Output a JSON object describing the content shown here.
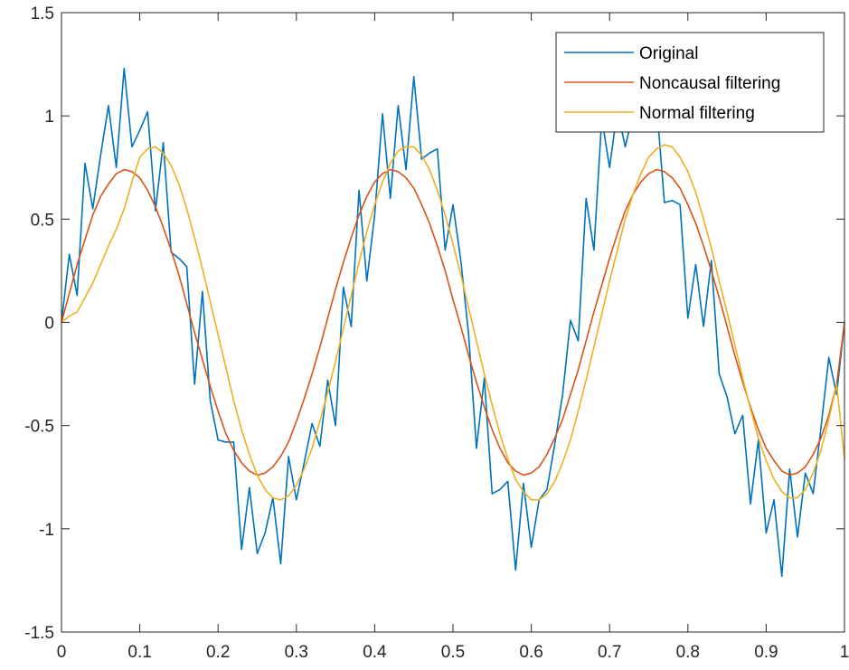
{
  "chart_data": {
    "type": "line",
    "x": [
      0.0,
      0.01,
      0.02,
      0.03,
      0.04,
      0.05,
      0.06,
      0.07,
      0.08,
      0.09,
      0.1,
      0.11,
      0.12,
      0.13,
      0.14,
      0.15,
      0.16,
      0.17,
      0.18,
      0.19,
      0.2,
      0.21,
      0.22,
      0.23,
      0.24,
      0.25,
      0.26,
      0.27,
      0.28,
      0.29,
      0.3,
      0.31,
      0.32,
      0.33,
      0.34,
      0.35,
      0.36,
      0.37,
      0.38,
      0.39,
      0.4,
      0.41,
      0.42,
      0.43,
      0.44,
      0.45,
      0.46,
      0.47,
      0.48,
      0.49,
      0.5,
      0.51,
      0.52,
      0.53,
      0.54,
      0.55,
      0.56,
      0.57,
      0.58,
      0.59,
      0.6,
      0.61,
      0.62,
      0.63,
      0.64,
      0.65,
      0.66,
      0.67,
      0.68,
      0.69,
      0.7,
      0.71,
      0.72,
      0.73,
      0.74,
      0.75,
      0.76,
      0.77,
      0.78,
      0.79,
      0.8,
      0.81,
      0.82,
      0.83,
      0.84,
      0.85,
      0.86,
      0.87,
      0.88,
      0.89,
      0.9,
      0.91,
      0.92,
      0.93,
      0.94,
      0.95,
      0.96,
      0.97,
      0.98,
      0.99,
      1.0
    ],
    "series": [
      {
        "name": "Original",
        "color": "#0072BD",
        "values": [
          0.0,
          0.33,
          0.13,
          0.77,
          0.55,
          0.81,
          1.05,
          0.75,
          1.23,
          0.85,
          0.93,
          1.02,
          0.54,
          0.87,
          0.34,
          0.31,
          0.27,
          -0.3,
          0.15,
          -0.38,
          -0.57,
          -0.58,
          -0.58,
          -1.1,
          -0.8,
          -1.12,
          -1.02,
          -0.85,
          -1.17,
          -0.65,
          -0.86,
          -0.68,
          -0.49,
          -0.6,
          -0.28,
          -0.5,
          0.17,
          -0.02,
          0.64,
          0.2,
          0.52,
          1.01,
          0.6,
          1.05,
          0.74,
          1.19,
          0.79,
          0.82,
          0.84,
          0.35,
          0.57,
          0.3,
          -0.06,
          -0.61,
          -0.27,
          -0.83,
          -0.81,
          -0.77,
          -1.2,
          -0.78,
          -1.09,
          -0.86,
          -0.81,
          -0.59,
          -0.35,
          0.01,
          -0.09,
          0.6,
          0.35,
          0.99,
          0.75,
          1.03,
          0.85,
          1.01,
          0.99,
          1.01,
          1.06,
          0.58,
          0.59,
          0.57,
          0.02,
          0.28,
          -0.02,
          0.3,
          -0.25,
          -0.36,
          -0.54,
          -0.45,
          -0.88,
          -0.57,
          -1.02,
          -0.86,
          -1.23,
          -0.71,
          -1.04,
          -0.73,
          -0.83,
          -0.51,
          -0.17,
          -0.35,
          0.0
        ]
      },
      {
        "name": "Noncausal filtering",
        "color": "#D95319",
        "values": [
          0.0,
          0.14,
          0.28,
          0.4,
          0.52,
          0.61,
          0.67,
          0.72,
          0.74,
          0.73,
          0.7,
          0.64,
          0.56,
          0.46,
          0.35,
          0.23,
          0.09,
          -0.05,
          -0.18,
          -0.31,
          -0.43,
          -0.54,
          -0.62,
          -0.68,
          -0.72,
          -0.74,
          -0.73,
          -0.7,
          -0.65,
          -0.58,
          -0.48,
          -0.37,
          -0.25,
          -0.12,
          0.02,
          0.16,
          0.29,
          0.41,
          0.52,
          0.61,
          0.68,
          0.72,
          0.74,
          0.73,
          0.7,
          0.65,
          0.57,
          0.48,
          0.37,
          0.25,
          0.11,
          -0.02,
          -0.16,
          -0.29,
          -0.41,
          -0.52,
          -0.61,
          -0.68,
          -0.72,
          -0.74,
          -0.73,
          -0.7,
          -0.64,
          -0.56,
          -0.47,
          -0.35,
          -0.23,
          -0.09,
          0.05,
          0.18,
          0.31,
          0.43,
          0.54,
          0.62,
          0.68,
          0.72,
          0.74,
          0.73,
          0.7,
          0.65,
          0.57,
          0.48,
          0.37,
          0.25,
          0.12,
          -0.02,
          -0.16,
          -0.29,
          -0.41,
          -0.52,
          -0.61,
          -0.67,
          -0.72,
          -0.74,
          -0.73,
          -0.7,
          -0.64,
          -0.56,
          -0.45,
          -0.3,
          0.0
        ]
      },
      {
        "name": "Normal filtering",
        "color": "#EDB120",
        "values": [
          0.0,
          0.03,
          0.05,
          0.12,
          0.19,
          0.28,
          0.37,
          0.45,
          0.55,
          0.68,
          0.8,
          0.84,
          0.85,
          0.82,
          0.76,
          0.67,
          0.55,
          0.41,
          0.26,
          0.1,
          -0.06,
          -0.22,
          -0.38,
          -0.52,
          -0.64,
          -0.74,
          -0.81,
          -0.85,
          -0.86,
          -0.84,
          -0.79,
          -0.71,
          -0.61,
          -0.48,
          -0.34,
          -0.19,
          -0.03,
          0.13,
          0.29,
          0.44,
          0.57,
          0.68,
          0.77,
          0.83,
          0.85,
          0.85,
          0.81,
          0.74,
          0.64,
          0.52,
          0.38,
          0.23,
          0.07,
          -0.09,
          -0.25,
          -0.4,
          -0.54,
          -0.66,
          -0.76,
          -0.82,
          -0.86,
          -0.86,
          -0.83,
          -0.77,
          -0.68,
          -0.57,
          -0.43,
          -0.28,
          -0.12,
          0.04,
          0.2,
          0.35,
          0.5,
          0.62,
          0.72,
          0.8,
          0.84,
          0.86,
          0.85,
          0.8,
          0.73,
          0.63,
          0.5,
          0.36,
          0.2,
          0.05,
          -0.11,
          -0.27,
          -0.42,
          -0.56,
          -0.67,
          -0.76,
          -0.82,
          -0.85,
          -0.85,
          -0.81,
          -0.73,
          -0.62,
          -0.47,
          -0.3,
          -0.66
        ]
      }
    ],
    "xlim": [
      0,
      1
    ],
    "ylim": [
      -1.5,
      1.5
    ],
    "x_ticks": [
      "0",
      "0.1",
      "0.2",
      "0.3",
      "0.4",
      "0.5",
      "0.6",
      "0.7",
      "0.8",
      "0.9",
      "1"
    ],
    "y_ticks": [
      "1.5",
      "1",
      "0.5",
      "0",
      "-0.5",
      "-1",
      "-1.5"
    ],
    "grid": false,
    "legend_position": "top-right"
  }
}
